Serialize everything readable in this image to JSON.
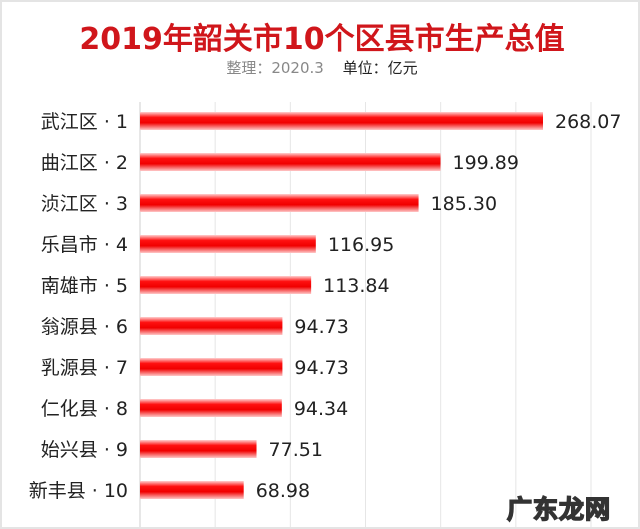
{
  "chart_data": {
    "type": "bar",
    "orientation": "horizontal",
    "title": "2019年韶关市10个区县市生产总值",
    "subtitle_note": "整理：2020.3",
    "subtitle_unit": "单位：亿元",
    "categories": [
      "武江区 · 1",
      "曲江区 · 2",
      "浈江区 · 3",
      "乐昌市 · 4",
      "南雄市 · 5",
      "翁源县 · 6",
      "乳源县 · 7",
      "仁化县 · 8",
      "始兴县 · 9",
      "新丰县 · 10"
    ],
    "values": [
      268.07,
      199.89,
      185.3,
      116.95,
      113.84,
      94.73,
      94.73,
      94.34,
      77.51,
      68.98
    ],
    "value_labels": [
      "268.07",
      "199.89",
      "185.30",
      "116.95",
      "113.84",
      "94.73",
      "94.73",
      "94.34",
      "77.51",
      "68.98"
    ],
    "xlim": [
      0,
      300
    ],
    "grid": true,
    "grid_step": 50,
    "bar_color": "#ff0000"
  },
  "watermark": "广东龙网"
}
